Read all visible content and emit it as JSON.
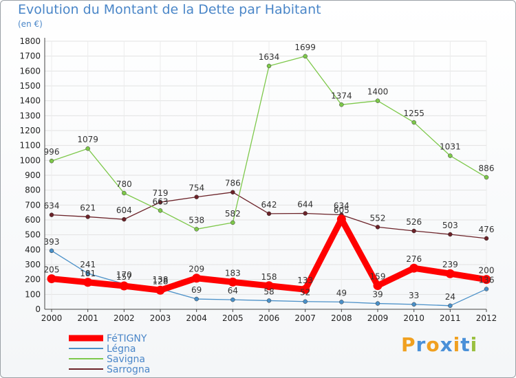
{
  "chart_data": {
    "type": "line",
    "title": "Evolution du Montant de la Dette par Habitant",
    "unit": "(en €)",
    "xlabel": "",
    "ylabel": "",
    "ylim": [
      0,
      1800
    ],
    "yticks": [
      0,
      100,
      200,
      300,
      400,
      500,
      600,
      700,
      800,
      900,
      1000,
      1100,
      1200,
      1300,
      1400,
      1500,
      1600,
      1700,
      1800
    ],
    "categories": [
      "2000",
      "2001",
      "2002",
      "2003",
      "2004",
      "2005",
      "2006",
      "2007",
      "2008",
      "2009",
      "2010",
      "2011",
      "2012"
    ],
    "series": [
      {
        "name": "Sarrogna",
        "color": "#6b2228",
        "values": [
          634,
          621,
          604,
          719,
          754,
          786,
          642,
          644,
          634,
          552,
          526,
          503,
          476
        ]
      },
      {
        "name": "Savigna",
        "color": "#7dc84a",
        "values": [
          996,
          1079,
          780,
          663,
          538,
          582,
          1634,
          1699,
          1374,
          1400,
          1255,
          1031,
          886
        ]
      },
      {
        "name": "Légna",
        "color": "#4a90c8",
        "values": [
          393,
          241,
          170,
          138,
          69,
          64,
          58,
          52,
          49,
          39,
          33,
          24,
          136
        ]
      },
      {
        "name": "FéTIGNY",
        "color": "#ff0000",
        "values": [
          205,
          181,
          157,
          128,
          209,
          183,
          158,
          133,
          605,
          159,
          276,
          239,
          200
        ]
      }
    ],
    "legend_position": "bottom-left"
  },
  "logo": {
    "text": "Proxiti",
    "letters": [
      "P",
      "r",
      "o",
      "x",
      "i",
      "t",
      "i"
    ],
    "colors": [
      "#f0a020",
      "#4a90d8",
      "#f0a020",
      "#4a90d8",
      "#f0a020",
      "#4a90d8",
      "#9ac040"
    ]
  }
}
